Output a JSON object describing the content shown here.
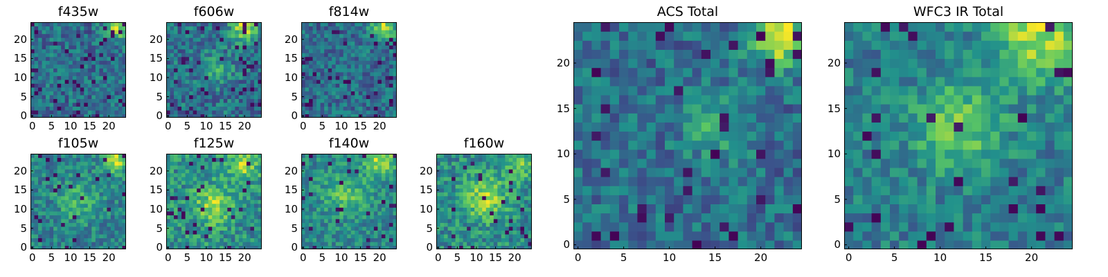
{
  "chart_data": [
    {
      "id": "f435w",
      "type": "heatmap",
      "title": "f435w",
      "grid_size": 25,
      "xticks": [
        0,
        5,
        10,
        15,
        20
      ],
      "yticks": [
        0,
        5,
        10,
        15,
        20
      ],
      "seed": 11,
      "hotspots": [
        {
          "x": 22,
          "y": 23,
          "s": 2.0,
          "a": 0.8
        }
      ],
      "noise": 0.55,
      "dark_frac": 0.07,
      "base": 0.55
    },
    {
      "id": "f606w",
      "type": "heatmap",
      "title": "f606w",
      "grid_size": 25,
      "xticks": [
        0,
        5,
        10,
        15,
        20
      ],
      "yticks": [
        0,
        5,
        10,
        15,
        20
      ],
      "seed": 23,
      "hotspots": [
        {
          "x": 20,
          "y": 23,
          "s": 2.5,
          "a": 0.7
        },
        {
          "x": 12,
          "y": 12,
          "s": 3.0,
          "a": 0.35
        }
      ],
      "noise": 0.5,
      "dark_frac": 0.07,
      "base": 0.5
    },
    {
      "id": "f814w",
      "type": "heatmap",
      "title": "f814w",
      "grid_size": 25,
      "xticks": [
        0,
        5,
        10,
        15,
        20
      ],
      "yticks": [
        0,
        5,
        10,
        15,
        20
      ],
      "seed": 37,
      "hotspots": [
        {
          "x": 21,
          "y": 23,
          "s": 2.5,
          "a": 0.75
        }
      ],
      "noise": 0.5,
      "dark_frac": 0.06,
      "base": 0.52
    },
    {
      "id": "f105w",
      "type": "heatmap",
      "title": "f105w",
      "grid_size": 25,
      "xticks": [
        0,
        5,
        10,
        15,
        20
      ],
      "yticks": [
        0,
        5,
        10,
        15,
        20
      ],
      "seed": 41,
      "hotspots": [
        {
          "x": 22,
          "y": 23,
          "s": 2.5,
          "a": 0.6
        },
        {
          "x": 12,
          "y": 12,
          "s": 4.0,
          "a": 0.3
        }
      ],
      "noise": 0.45,
      "dark_frac": 0.05,
      "base": 0.6
    },
    {
      "id": "f125w",
      "type": "heatmap",
      "title": "f125w",
      "grid_size": 25,
      "xticks": [
        0,
        5,
        10,
        15,
        20
      ],
      "yticks": [
        0,
        5,
        10,
        15,
        20
      ],
      "seed": 53,
      "hotspots": [
        {
          "x": 12,
          "y": 11,
          "s": 3.5,
          "a": 0.4
        },
        {
          "x": 20,
          "y": 22,
          "s": 3.0,
          "a": 0.4
        }
      ],
      "noise": 0.45,
      "dark_frac": 0.06,
      "base": 0.58
    },
    {
      "id": "f140w",
      "type": "heatmap",
      "title": "f140w",
      "grid_size": 25,
      "xticks": [
        0,
        5,
        10,
        15,
        20
      ],
      "yticks": [
        0,
        5,
        10,
        15,
        20
      ],
      "seed": 67,
      "hotspots": [
        {
          "x": 20,
          "y": 23,
          "s": 3.0,
          "a": 0.55
        },
        {
          "x": 11,
          "y": 14,
          "s": 4.0,
          "a": 0.35
        }
      ],
      "noise": 0.42,
      "dark_frac": 0.04,
      "base": 0.62
    },
    {
      "id": "f160w",
      "type": "heatmap",
      "title": "f160w",
      "grid_size": 25,
      "xticks": [
        0,
        5,
        10,
        15,
        20
      ],
      "yticks": [
        0,
        5,
        10,
        15,
        20
      ],
      "seed": 79,
      "hotspots": [
        {
          "x": 12,
          "y": 13,
          "s": 4.0,
          "a": 0.45
        },
        {
          "x": 21,
          "y": 22,
          "s": 3.0,
          "a": 0.35
        }
      ],
      "noise": 0.45,
      "dark_frac": 0.05,
      "base": 0.58
    },
    {
      "id": "acs_total",
      "type": "heatmap",
      "title": "ACS Total",
      "grid_size": 25,
      "xticks": [
        0,
        5,
        10,
        15,
        20
      ],
      "yticks": [
        0,
        5,
        10,
        15,
        20
      ],
      "seed": 97,
      "hotspots": [
        {
          "x": 22,
          "y": 23,
          "s": 2.2,
          "a": 0.85
        },
        {
          "x": 15,
          "y": 13,
          "s": 2.5,
          "a": 0.35
        }
      ],
      "noise": 0.45,
      "dark_frac": 0.05,
      "base": 0.5
    },
    {
      "id": "wfc3_ir_total",
      "type": "heatmap",
      "title": "WFC3 IR Total",
      "grid_size": 25,
      "xticks": [
        0,
        5,
        10,
        15,
        20
      ],
      "yticks": [
        0,
        5,
        10,
        15,
        20
      ],
      "seed": 113,
      "hotspots": [
        {
          "x": 21,
          "y": 23,
          "s": 3.5,
          "a": 0.6
        },
        {
          "x": 12,
          "y": 13,
          "s": 3.5,
          "a": 0.45
        }
      ],
      "noise": 0.4,
      "dark_frac": 0.045,
      "base": 0.55
    }
  ],
  "colormap": "viridis",
  "colormap_stops": [
    "#440154",
    "#3b528b",
    "#21918c",
    "#5ec962",
    "#fde725"
  ]
}
